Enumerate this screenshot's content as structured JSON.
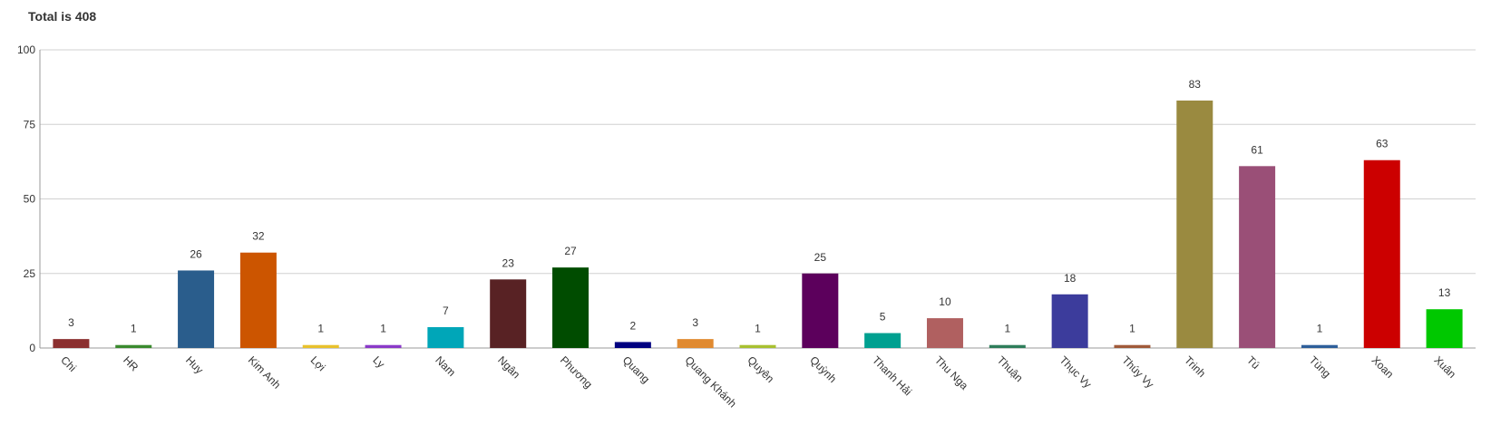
{
  "chart_data": {
    "type": "bar",
    "title": "Total is 408",
    "xlabel": "",
    "ylabel": "",
    "ylim": [
      0,
      100
    ],
    "yticks": [
      0,
      25,
      50,
      75,
      100
    ],
    "grid": true,
    "legend": "none",
    "categories": [
      "Chi",
      "HR",
      "Huy",
      "Kim Anh",
      "Lợi",
      "Ly",
      "Nam",
      "Ngân",
      "Phương",
      "Quang",
      "Quang Khánh",
      "Quyên",
      "Quỳnh",
      "Thanh Hải",
      "Thu Nga",
      "Thuận",
      "Thục Vy",
      "Thúy Vy",
      "Trinh",
      "Tú",
      "Tùng",
      "Xoan",
      "Xuân"
    ],
    "values": [
      3,
      1,
      26,
      32,
      1,
      1,
      7,
      23,
      27,
      2,
      3,
      1,
      25,
      5,
      10,
      1,
      18,
      1,
      83,
      61,
      1,
      63,
      13
    ],
    "colors": [
      "#8B2F2F",
      "#3A8A2E",
      "#2A5D8C",
      "#CC5500",
      "#E8C12C",
      "#8A3AC8",
      "#00A6B8",
      "#582224",
      "#004C00",
      "#000080",
      "#E08A30",
      "#A8C030",
      "#5C005C",
      "#00A090",
      "#B06060",
      "#2E7D5A",
      "#3C3C9C",
      "#A05A3A",
      "#9A8A40",
      "#9A4F77",
      "#2E5F9A",
      "#CC0000",
      "#00C800"
    ]
  }
}
